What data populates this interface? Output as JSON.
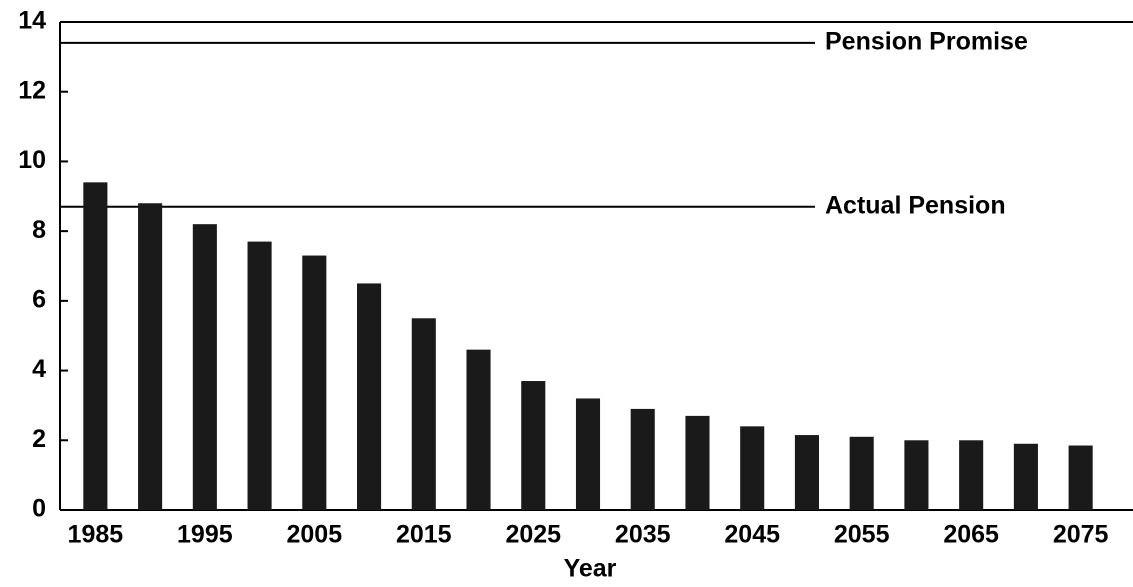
{
  "chart_data": {
    "type": "bar",
    "x_label": "Year",
    "categories": [
      "1985",
      null,
      "1995",
      null,
      "2005",
      null,
      "2015",
      null,
      "2025",
      null,
      "2035",
      null,
      "2045",
      null,
      "2055",
      null,
      "2065",
      null,
      "2075"
    ],
    "values": [
      9.4,
      8.8,
      8.2,
      7.7,
      7.3,
      6.5,
      5.5,
      4.6,
      3.7,
      3.2,
      2.9,
      2.7,
      2.4,
      2.15,
      2.1,
      2.0,
      2.0,
      1.9,
      1.85
    ],
    "color": "#1a1a1a",
    "ylim": [
      0,
      14
    ],
    "yticks": [
      0,
      2,
      4,
      6,
      8,
      10,
      12,
      14
    ],
    "reference_lines": [
      {
        "label": "Pension Promise",
        "value": 13.4
      },
      {
        "label": "Actual Pension",
        "value": 8.7
      }
    ]
  }
}
